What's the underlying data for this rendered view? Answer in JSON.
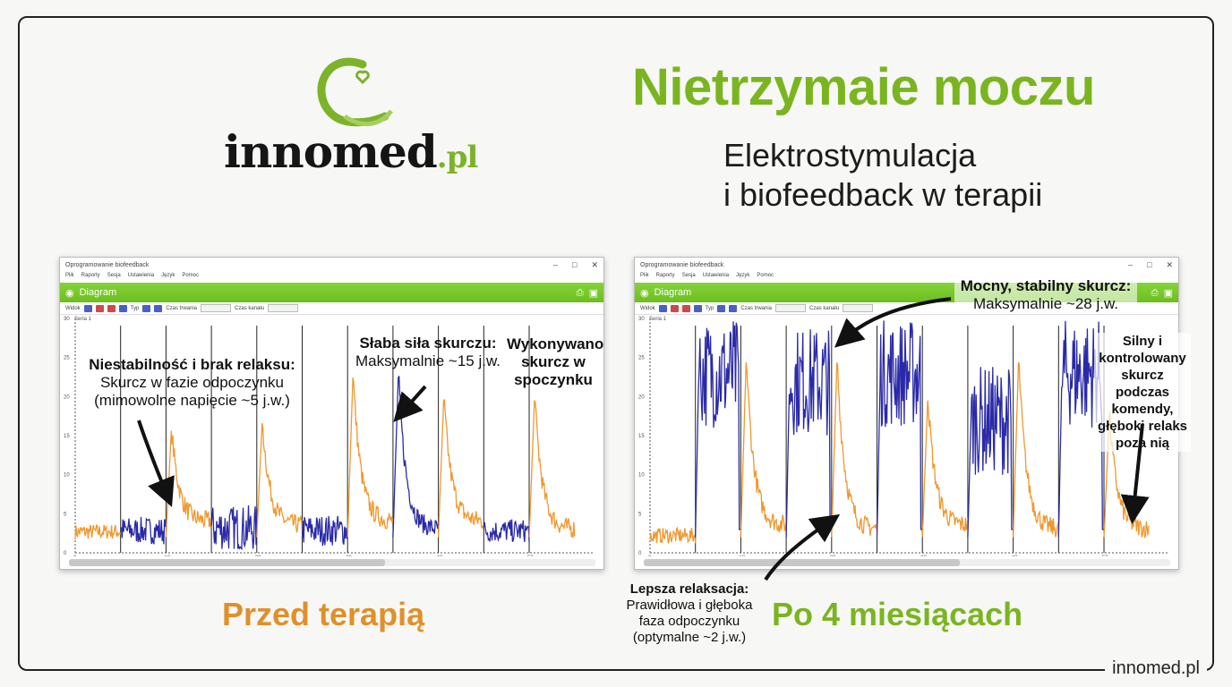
{
  "brand": {
    "logo_name": "innomed",
    "logo_tld": ".pl",
    "footer": "innomed.pl"
  },
  "header": {
    "title": "Nietrzymaie moczu",
    "subtitle_line1": "Elektrostymulacja",
    "subtitle_line2": "i biofeedback w terapii"
  },
  "colors": {
    "accent_green": "#7ab520",
    "accent_orange": "#e0902a",
    "signal_orange": "#f0982e",
    "signal_blue": "#2a2aa8"
  },
  "panels": [
    {
      "window_title": "Oprogramowanie biofeedback",
      "menu": [
        "Plik",
        "Raporty",
        "Sesja",
        "Ustawienia",
        "Język",
        "Pomoc"
      ],
      "view_title": "Diagram",
      "toolbar_labels": [
        "Widok",
        "Typ",
        "Czas trwania",
        "Czas kanału"
      ],
      "series_label": "Seria 1",
      "caption": "Przed terapią",
      "annotations": [
        {
          "title": "Niestabilność i brak relaksu:",
          "lines": [
            "Skurcz w fazie odpoczynku",
            "(mimowolne napięcie ~5 j.w.)"
          ]
        },
        {
          "title": "Słaba siła skurczu:",
          "lines": [
            "Maksymalnie ~15 j.w."
          ]
        },
        {
          "title": "Wykonywano skurcz w spoczynku",
          "lines": []
        }
      ]
    },
    {
      "window_title": "Oprogramowanie biofeedback",
      "menu": [
        "Plik",
        "Raporty",
        "Sesja",
        "Ustawienia",
        "Język",
        "Pomoc"
      ],
      "view_title": "Diagram",
      "toolbar_labels": [
        "Widok",
        "Typ",
        "Czas trwania",
        "Czas kanału"
      ],
      "series_label": "Seria 1",
      "caption": "Po 4 miesiącach",
      "annotations": [
        {
          "title": "Mocny, stabilny skurcz:",
          "lines": [
            "Maksymalnie ~28 j.w."
          ]
        },
        {
          "title": "Silny i kontrolowany skurcz podczas komendy, głęboki relaks poza nią",
          "lines": []
        },
        {
          "title": "Lepsza relaksacja:",
          "lines": [
            "Prawidłowa i głęboka",
            "faza odpoczynku",
            "(optymalne ~2 j.w.)"
          ]
        }
      ]
    }
  ],
  "chart_data": [
    {
      "type": "line",
      "title": "",
      "xlim": [
        0,
        57
      ],
      "ylim": [
        0,
        30
      ],
      "xticks": [
        0,
        10,
        20,
        30,
        40,
        50
      ],
      "yticks": [
        0,
        5,
        10,
        15,
        20,
        25,
        30
      ],
      "grid": false,
      "markers_x": [
        5,
        10,
        15,
        20,
        25,
        30,
        35,
        40,
        45,
        50
      ],
      "segments": [
        {
          "x": [
            0,
            5
          ],
          "color": "orange",
          "baseline": 2.5,
          "peak": 3
        },
        {
          "x": [
            5,
            10
          ],
          "color": "blue",
          "baseline": 2.5,
          "peak": 4.5
        },
        {
          "x": [
            10,
            15
          ],
          "color": "orange",
          "baseline": 4,
          "peak": 16
        },
        {
          "x": [
            15,
            20
          ],
          "color": "blue",
          "baseline": 2.5,
          "peak": 7
        },
        {
          "x": [
            20,
            25
          ],
          "color": "orange",
          "baseline": 3.5,
          "peak": 17
        },
        {
          "x": [
            25,
            30
          ],
          "color": "blue",
          "baseline": 2.5,
          "peak": 5
        },
        {
          "x": [
            30,
            35
          ],
          "color": "orange",
          "baseline": 4,
          "peak": 23
        },
        {
          "x": [
            35,
            40
          ],
          "color": "blue",
          "baseline": 3,
          "peak": 23
        },
        {
          "x": [
            40,
            45
          ],
          "color": "orange",
          "baseline": 4,
          "peak": 20
        },
        {
          "x": [
            45,
            50
          ],
          "color": "blue",
          "baseline": 2.5,
          "peak": 4
        },
        {
          "x": [
            50,
            55
          ],
          "color": "orange",
          "baseline": 3,
          "peak": 20
        }
      ]
    },
    {
      "type": "line",
      "title": "",
      "xlim": [
        0,
        57
      ],
      "ylim": [
        0,
        30
      ],
      "xticks": [
        0,
        10,
        20,
        30,
        40,
        50
      ],
      "yticks": [
        0,
        5,
        10,
        15,
        20,
        25,
        30
      ],
      "grid": false,
      "markers_x": [
        5,
        10,
        15,
        20,
        25,
        30,
        35,
        40,
        45,
        50
      ],
      "segments": [
        {
          "x": [
            0,
            5
          ],
          "color": "orange",
          "baseline": 2,
          "peak": 2.5
        },
        {
          "x": [
            5,
            10
          ],
          "color": "blue",
          "baseline": 23,
          "peak": 30
        },
        {
          "x": [
            10,
            15
          ],
          "color": "orange",
          "baseline": 3.5,
          "peak": 25
        },
        {
          "x": [
            15,
            20
          ],
          "color": "blue",
          "baseline": 22,
          "peak": 30
        },
        {
          "x": [
            20,
            25
          ],
          "color": "orange",
          "baseline": 3,
          "peak": 25
        },
        {
          "x": [
            25,
            30
          ],
          "color": "blue",
          "baseline": 23,
          "peak": 30
        },
        {
          "x": [
            30,
            35
          ],
          "color": "orange",
          "baseline": 3.5,
          "peak": 20
        },
        {
          "x": [
            35,
            40
          ],
          "color": "blue",
          "baseline": 17,
          "peak": 30
        },
        {
          "x": [
            40,
            45
          ],
          "color": "orange",
          "baseline": 3,
          "peak": 25
        },
        {
          "x": [
            45,
            50
          ],
          "color": "blue",
          "baseline": 23,
          "peak": 30
        },
        {
          "x": [
            50,
            55
          ],
          "color": "orange",
          "baseline": 3,
          "peak": 18
        }
      ]
    }
  ]
}
